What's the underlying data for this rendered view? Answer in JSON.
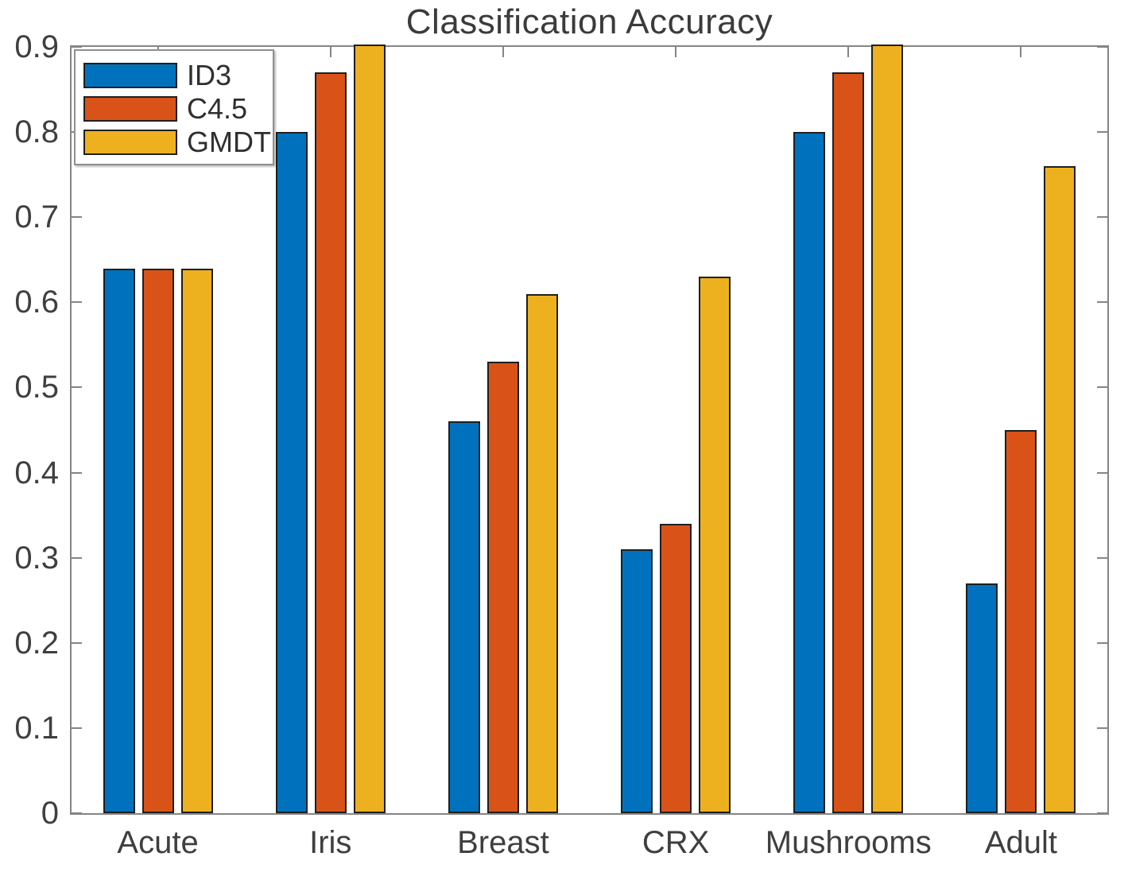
{
  "figure": {
    "background_color": "#ffffff",
    "axis_line_color": "#858585",
    "tick_label_color": "#3f3f3f",
    "bar_edge_color": "#1f1f1f",
    "title_color": "#3b3b3b"
  },
  "chart_data": {
    "type": "bar",
    "title": "Classification Accuracy",
    "xlabel": "",
    "ylabel": "",
    "categories": [
      "Acute",
      "Iris",
      "Breast",
      "CRX",
      "Mushrooms",
      "Adult"
    ],
    "series": [
      {
        "name": "ID3",
        "color": "#0072BD",
        "values": [
          0.64,
          0.8,
          0.46,
          0.31,
          0.8,
          0.27
        ]
      },
      {
        "name": "C4.5",
        "color": "#D95319",
        "values": [
          0.64,
          0.87,
          0.53,
          0.34,
          0.87,
          0.45
        ]
      },
      {
        "name": "GMDT",
        "color": "#EDB120",
        "values": [
          0.64,
          0.9,
          0.61,
          0.63,
          0.9,
          0.76
        ]
      }
    ],
    "clipped_points": [
      {
        "series": "GMDT",
        "category": "Iris"
      },
      {
        "series": "GMDT",
        "category": "Mushrooms"
      }
    ],
    "ylim": [
      0,
      0.9
    ],
    "yticks": [
      0,
      0.1,
      0.2,
      0.3,
      0.4,
      0.5,
      0.6,
      0.7,
      0.8,
      0.9
    ],
    "ytick_labels": [
      "0",
      "0.1",
      "0.2",
      "0.3",
      "0.4",
      "0.5",
      "0.6",
      "0.7",
      "0.8",
      "0.9"
    ],
    "grid": false,
    "legend_position": "northwest",
    "note": "GMDT bars for Iris and Mushrooms reach the top axis limit (clipped at 0.9)"
  }
}
